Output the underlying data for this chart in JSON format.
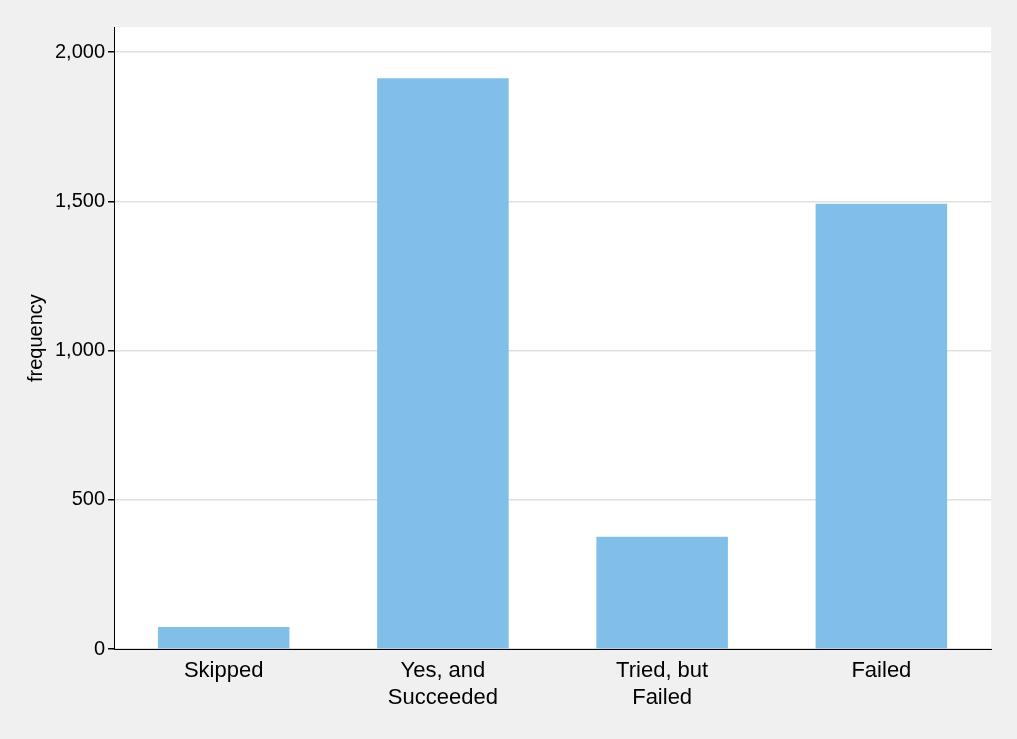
{
  "chart_data": {
    "type": "bar",
    "ylabel": "frequency",
    "categories": [
      "Skipped",
      "Yes, and Succeeded",
      "Tried, but Failed",
      "Failed"
    ],
    "values": [
      74,
      1912,
      377,
      1492
    ],
    "color": "#82bfe8",
    "ylim": [
      0,
      2084
    ],
    "yticks": [
      {
        "value": 0,
        "label": "0"
      },
      {
        "value": 500,
        "label": "500"
      },
      {
        "value": 1000,
        "label": "1,000"
      },
      {
        "value": 1500,
        "label": "1,500"
      },
      {
        "value": 2000,
        "label": "2,000"
      }
    ],
    "grid": "y",
    "legend": false
  }
}
